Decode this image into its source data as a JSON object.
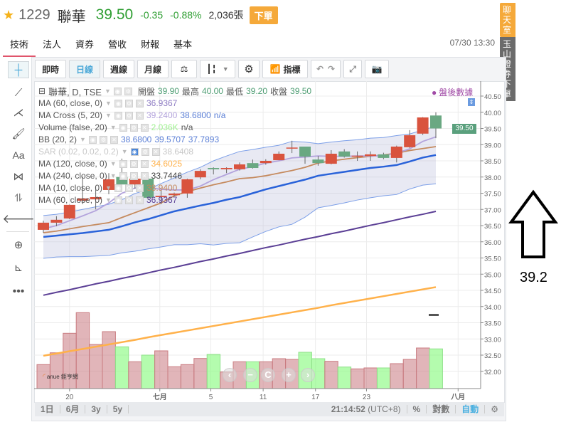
{
  "header": {
    "code": "1229",
    "name": "聯華",
    "price": "39.50",
    "change": "-0.35",
    "change_pct": "-0.88%",
    "volume": "2,036張",
    "order_button": "下單"
  },
  "tabs": [
    {
      "label": "技術",
      "active": true
    },
    {
      "label": "法人"
    },
    {
      "label": "資券"
    },
    {
      "label": "營收"
    },
    {
      "label": "財報"
    },
    {
      "label": "基本"
    }
  ],
  "timestamp": "07/30 13:30",
  "side": {
    "chat": "聊天室",
    "trade": "玉山證券下單"
  },
  "toolbar": {
    "intraday": "即時",
    "daily": "日線",
    "weekly": "週線",
    "monthly": "月線",
    "compare_icon": "⚖",
    "indicators": "指標"
  },
  "legend": {
    "main": {
      "title": "聯華, D, TSE",
      "open_label": "開盤",
      "open": "39.90",
      "high_label": "最高",
      "high": "40.00",
      "low_label": "最低",
      "low": "39.20",
      "close_label": "收盤",
      "close": "39.50"
    },
    "rows": [
      {
        "label": "MA (60, close, 0)",
        "values": [
          {
            "v": "36.9367",
            "c": "#8e7cc3"
          }
        ]
      },
      {
        "label": "MA Cross (5, 20)",
        "values": [
          {
            "v": "39.2400",
            "c": "#b3a3dc"
          },
          {
            "v": "38.6800",
            "c": "#5b7fd6"
          },
          {
            "v": "n/a",
            "c": "#5b7fd6"
          }
        ]
      },
      {
        "label": "Volume (false, 20)",
        "values": [
          {
            "v": "2.036K",
            "c": "#9ef08f"
          },
          {
            "v": "n/a",
            "c": "#555"
          }
        ]
      },
      {
        "label": "BB (20, 2)",
        "values": [
          {
            "v": "38.6800",
            "c": "#5b7fd6"
          },
          {
            "v": "39.5707",
            "c": "#5b7fd6"
          },
          {
            "v": "37.7893",
            "c": "#5b7fd6"
          }
        ]
      },
      {
        "label": "SAR (0.02, 0.02, 0.2)",
        "values": [
          {
            "v": "38.6408",
            "c": "#c8c8c8"
          }
        ],
        "faded": true
      },
      {
        "label": "MA (120, close, 0)",
        "values": [
          {
            "v": "34.6025",
            "c": "#ffb14a"
          }
        ]
      },
      {
        "label": "MA (240, close, 0)",
        "values": [
          {
            "v": "33.7446",
            "c": "#444"
          }
        ]
      },
      {
        "label": "MA (10, close, 0)",
        "values": [
          {
            "v": "38.9400",
            "c": "#c58a5e"
          }
        ]
      },
      {
        "label": "MA (60, close, 0)",
        "values": [
          {
            "v": "36.9367",
            "c": "#5b3f95"
          }
        ]
      }
    ]
  },
  "after_hours": "盤後數據",
  "logo": "anue 鉅亨網",
  "bottom": {
    "ranges": [
      "1日",
      "6月",
      "3y",
      "5y"
    ],
    "clock": "21:14:52",
    "tz": "(UTC+8)",
    "pct": "%",
    "log": "對數",
    "auto": "自動"
  },
  "annotation": {
    "value": "39.2"
  },
  "colors": {
    "up": "#d9533e",
    "down": "#6aa882",
    "ma5": "#b3a3dc",
    "ma10": "#c58a5e",
    "ma20": "#2962d9",
    "ma60": "#5b3f95",
    "ma120": "#ffb14a",
    "bb": "#7c9fe8"
  },
  "chart_data": {
    "type": "candlestick",
    "y_ticks": [
      "40.50",
      "40.00",
      "39.50",
      "39.00",
      "38.50",
      "38.00",
      "37.50",
      "37.00",
      "36.50",
      "36.00",
      "35.50",
      "35.00",
      "34.50",
      "34.00",
      "33.50",
      "33.00",
      "32.50",
      "32.00"
    ],
    "ylim": [
      32.0,
      40.5
    ],
    "x_ticks": [
      {
        "label": "20",
        "x": 2
      },
      {
        "label": "七月",
        "x": 8.9
      },
      {
        "label": "5",
        "x": 12.8
      },
      {
        "label": "11",
        "x": 16.8
      },
      {
        "label": "17",
        "x": 20.8
      },
      {
        "label": "23",
        "x": 24.7
      },
      {
        "label": "八月",
        "x": 31.7
      }
    ],
    "last_price": "39.50",
    "ma240_marker": 33.74,
    "ohlc": [
      [
        36.37,
        36.65,
        36.28,
        36.59
      ],
      [
        36.59,
        36.79,
        36.48,
        36.68
      ],
      [
        36.72,
        37.15,
        36.7,
        37.14
      ],
      [
        37.27,
        38.0,
        37.16,
        37.34
      ],
      [
        37.31,
        37.71,
        37.0,
        37.38
      ],
      [
        37.6,
        38.12,
        37.47,
        37.93
      ],
      [
        38.0,
        38.57,
        37.58,
        37.77
      ],
      [
        37.77,
        38.02,
        37.64,
        37.95
      ],
      [
        37.95,
        38.0,
        37.3,
        37.36
      ],
      [
        37.38,
        37.6,
        37.16,
        37.42
      ],
      [
        37.44,
        37.52,
        37.4,
        37.49
      ],
      [
        37.49,
        37.95,
        37.36,
        37.93
      ],
      [
        37.99,
        38.24,
        37.93,
        38.19
      ],
      [
        38.28,
        38.3,
        38.08,
        38.24
      ],
      [
        38.24,
        38.3,
        38.12,
        38.28
      ],
      [
        38.24,
        38.45,
        38.2,
        38.39
      ],
      [
        38.43,
        38.54,
        38.26,
        38.28
      ],
      [
        38.43,
        38.55,
        38.38,
        38.5
      ],
      [
        38.52,
        38.79,
        38.52,
        38.72
      ],
      [
        38.89,
        39.12,
        38.74,
        38.91
      ],
      [
        38.94,
        38.94,
        38.41,
        38.63
      ],
      [
        38.54,
        38.65,
        38.35,
        38.43
      ],
      [
        38.41,
        38.83,
        38.39,
        38.72
      ],
      [
        38.79,
        38.86,
        38.6,
        38.63
      ],
      [
        38.64,
        38.79,
        38.5,
        38.66
      ],
      [
        38.65,
        38.79,
        38.5,
        38.7
      ],
      [
        38.7,
        38.75,
        38.55,
        38.59
      ],
      [
        38.59,
        38.97,
        38.45,
        38.94
      ],
      [
        38.92,
        39.45,
        38.9,
        39.29
      ],
      [
        39.34,
        39.85,
        39.3,
        39.84
      ],
      [
        39.9,
        40.0,
        39.2,
        39.5
      ]
    ],
    "volume": [
      1230,
      1836,
      2836,
      3894,
      2263,
      2920,
      2142,
      1376,
      1716,
      1935,
      1120,
      1230,
      1544,
      1752,
      850,
      1376,
      1376,
      1376,
      1533,
      1497,
      1862,
      1533,
      1398,
      1106,
      1011,
      1059,
      1059,
      1278,
      1497,
      2081,
      2036
    ],
    "volume_up": [
      1,
      1,
      1,
      1,
      1,
      1,
      0,
      1,
      0,
      1,
      1,
      1,
      1,
      0,
      1,
      1,
      0,
      1,
      1,
      1,
      0,
      0,
      1,
      0,
      1,
      1,
      0,
      1,
      1,
      1,
      0
    ],
    "series": [
      {
        "name": "BB upper",
        "key": "bb",
        "values": [
          36.81,
          36.85,
          36.92,
          37.0,
          37.08,
          37.16,
          37.3,
          37.49,
          37.62,
          37.8,
          37.97,
          38.15,
          38.3,
          38.5,
          38.65,
          38.79,
          38.85,
          38.92,
          38.98,
          39.1,
          39.08,
          39.03,
          39.08,
          39.12,
          39.15,
          39.2,
          39.22,
          39.28,
          39.33,
          39.45,
          39.57
        ]
      },
      {
        "name": "BB lower",
        "key": "bb",
        "values": [
          35.49,
          35.53,
          35.54,
          35.54,
          35.56,
          35.58,
          35.66,
          35.71,
          35.78,
          35.84,
          35.91,
          35.91,
          35.94,
          35.9,
          35.95,
          35.97,
          36.15,
          36.32,
          36.46,
          36.54,
          36.76,
          37.05,
          37.12,
          37.2,
          37.29,
          37.36,
          37.42,
          37.46,
          37.63,
          37.75,
          37.79
        ]
      },
      {
        "name": "MA120",
        "key": "ma120",
        "values": [
          32.48,
          32.55,
          32.62,
          32.69,
          32.76,
          32.83,
          32.9,
          32.97,
          33.05,
          33.12,
          33.19,
          33.26,
          33.33,
          33.4,
          33.47,
          33.54,
          33.61,
          33.68,
          33.75,
          33.82,
          33.89,
          33.96,
          34.04,
          34.11,
          34.18,
          34.25,
          34.32,
          34.39,
          34.46,
          34.53,
          34.6
        ]
      },
      {
        "name": "MA60",
        "key": "ma60",
        "values": [
          34.35,
          34.44,
          34.52,
          34.61,
          34.7,
          34.78,
          34.87,
          34.95,
          35.04,
          35.13,
          35.21,
          35.3,
          35.39,
          35.47,
          35.56,
          35.64,
          35.73,
          35.82,
          35.9,
          35.99,
          36.08,
          36.16,
          36.25,
          36.33,
          36.42,
          36.51,
          36.59,
          36.68,
          36.77,
          36.85,
          36.94
        ]
      },
      {
        "name": "MA20",
        "key": "ma20",
        "values": [
          36.15,
          36.19,
          36.23,
          36.27,
          36.32,
          36.37,
          36.48,
          36.6,
          36.7,
          36.82,
          36.94,
          37.03,
          37.12,
          37.2,
          37.3,
          37.38,
          37.5,
          37.62,
          37.72,
          37.82,
          37.92,
          38.04,
          38.1,
          38.16,
          38.22,
          38.28,
          38.32,
          38.37,
          38.48,
          38.6,
          38.68
        ]
      },
      {
        "name": "MA10",
        "key": "ma10",
        "values": [
          36.28,
          36.33,
          36.4,
          36.47,
          36.53,
          36.59,
          36.75,
          36.9,
          37.05,
          37.2,
          37.42,
          37.55,
          37.66,
          37.76,
          37.85,
          37.95,
          37.98,
          38.04,
          38.12,
          38.2,
          38.3,
          38.43,
          38.5,
          38.55,
          38.6,
          38.64,
          38.68,
          38.74,
          38.82,
          38.88,
          38.94
        ]
      },
      {
        "name": "MA5",
        "key": "ma5",
        "values": [
          36.4,
          36.5,
          36.65,
          36.8,
          36.96,
          37.2,
          37.5,
          37.66,
          37.68,
          37.62,
          37.6,
          37.6,
          37.72,
          37.92,
          38.08,
          38.24,
          38.32,
          38.43,
          38.5,
          38.59,
          38.62,
          38.65,
          38.64,
          38.64,
          38.65,
          38.65,
          38.66,
          38.74,
          38.87,
          39.1,
          39.24
        ]
      }
    ]
  }
}
